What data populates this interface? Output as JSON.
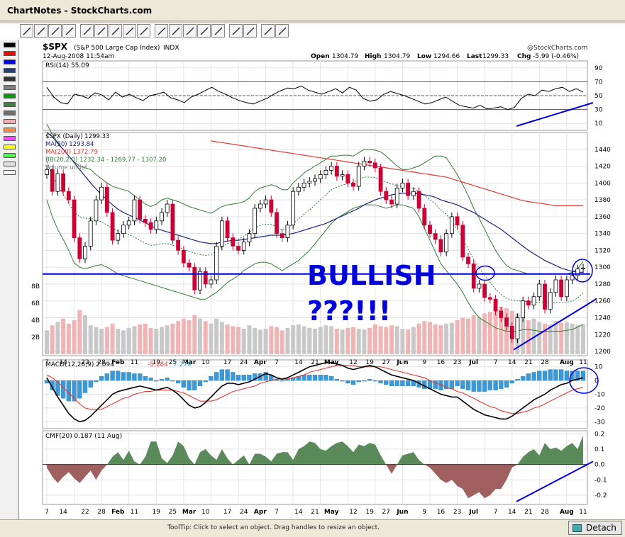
{
  "window": {
    "title": "ChartNotes - StockCharts.com"
  },
  "status": {
    "tooltip": "ToolTip: Click to select an object. Drag handles to resize an object.",
    "detach": "Detach"
  },
  "toolbar": {
    "tools": [
      "select-pointer",
      "line",
      "horizontal-line",
      "vertical-line",
      "rectangle",
      "ellipse",
      "text",
      "callout",
      "arrow",
      "fib-lines",
      "vertical-lines",
      "parallel-lines",
      "trend-channel",
      "segment",
      "shift-left",
      "shift-right",
      "undo",
      "properties"
    ]
  },
  "palette": {
    "colors": [
      "#000000",
      "#ff0000",
      "#0000ff",
      "#1f3f7f",
      "#333333",
      "#7f7f7f",
      "#009f00",
      "#3f7f3f",
      "#6f6f6f",
      "#ffaaaa",
      "#ff8844",
      "#ff44ff",
      "#ffff00",
      "#44ff44",
      "#dddddd",
      "#ffffff"
    ]
  },
  "colors": {
    "price_axis_hline": "#0000cc",
    "annotation": "#0000dd",
    "ma50": "#1a237e",
    "ma200": "#e53935",
    "bb": "#2e7d32",
    "up_candle": "#000000",
    "down_candle": "#cc0033",
    "vol_up": "#c8c8c8",
    "vol_down": "#f0b4b4",
    "macd_hist": "#3a9ad9",
    "cmf_pos": "#5a8a5a",
    "cmf_neg": "#a06060"
  },
  "header": {
    "symbol": "$SPX",
    "name": "(S&P 500 Large Cap Index)",
    "exchange": "INDX",
    "date": "12-Aug-2008 11:54am",
    "brand": "@StockCharts.com",
    "quote": {
      "open_label": "Open",
      "open": "1304.79",
      "high_label": "High",
      "high": "1304.79",
      "low_label": "Low",
      "low": "1294.66",
      "last_label": "Last",
      "last": "1299.33",
      "chg_label": "Chg",
      "chg": "-5.99 (-0.46%)"
    }
  },
  "annotations": {
    "bullish": "BULLISH",
    "question": "???!!!"
  },
  "chart_data": [
    {
      "type": "line",
      "title": "RSI(14) 55.09",
      "legend": [
        {
          "name": "RSI(14) 55.09",
          "color": "#000000"
        }
      ],
      "ylim": [
        0,
        100
      ],
      "y_ticks": [
        90,
        70,
        50,
        30,
        10
      ],
      "reference_lines": [
        70,
        50,
        30
      ],
      "series": [
        {
          "name": "RSI(14)",
          "values": [
            62,
            48,
            40,
            38,
            52,
            50,
            46,
            54,
            51,
            44,
            55,
            48,
            52,
            47,
            43,
            50,
            52,
            55,
            47,
            44,
            40,
            48,
            52,
            57,
            62,
            56,
            52,
            47,
            43,
            40,
            38,
            42,
            46,
            52,
            57,
            61,
            60,
            64,
            58,
            55,
            52,
            56,
            60,
            54,
            62,
            58,
            46,
            42,
            44,
            52,
            56,
            53,
            50,
            46,
            42,
            38,
            40,
            44,
            48,
            42,
            36,
            34,
            32,
            36,
            31,
            32,
            34,
            30,
            33,
            46,
            52,
            50,
            58,
            56,
            60,
            62,
            56,
            60,
            55
          ]
        }
      ]
    },
    {
      "type": "line",
      "title": "$SPX (Daily) 1299.33",
      "legend": [
        {
          "name": "$SPX (Daily) 1299.33",
          "color": "#000000"
        },
        {
          "name": "MA(50) 1293.84",
          "color": "#1a237e"
        },
        {
          "name": "MA(200) 1372.79",
          "color": "#e53935"
        },
        {
          "name": "BB(20,2.0) 1232.34 - 1269.77 - 1307.20",
          "color": "#2e7d32"
        },
        {
          "name": "Volume undef",
          "color": "#7f7f7f"
        }
      ],
      "ylim": [
        1195,
        1460
      ],
      "y_ticks": [
        1440,
        1420,
        1400,
        1380,
        1360,
        1340,
        1320,
        1300,
        1280,
        1260,
        1240,
        1220,
        1200
      ],
      "volume_ticks": [
        "8B",
        "6B",
        "4B",
        "2B"
      ],
      "x_ticks": [
        "7",
        "14",
        "22",
        "28",
        "Feb",
        "11",
        "19",
        "25",
        "Mar",
        "10",
        "17",
        "24",
        "Apr",
        "7",
        "14",
        "21",
        "May",
        "12",
        "19",
        "27",
        "Jun",
        "9",
        "16",
        "23",
        "Jul",
        "7",
        "14",
        "21",
        "28",
        "Aug",
        "11"
      ],
      "x_month_labels": [
        "Feb",
        "Mar",
        "Apr",
        "May",
        "Jun",
        "Jul",
        "Aug"
      ],
      "hline": 1292,
      "close": [
        1416,
        1390,
        1411,
        1390,
        1380,
        1335,
        1310,
        1325,
        1355,
        1380,
        1395,
        1365,
        1332,
        1340,
        1350,
        1355,
        1380,
        1357,
        1353,
        1345,
        1355,
        1365,
        1375,
        1332,
        1320,
        1305,
        1300,
        1273,
        1295,
        1280,
        1285,
        1325,
        1355,
        1335,
        1325,
        1320,
        1330,
        1340,
        1370,
        1375,
        1380,
        1365,
        1340,
        1335,
        1350,
        1390,
        1395,
        1400,
        1402,
        1405,
        1410,
        1415,
        1420,
        1408,
        1410,
        1400,
        1396,
        1420,
        1426,
        1424,
        1418,
        1390,
        1380,
        1375,
        1394,
        1400,
        1385,
        1390,
        1370,
        1350,
        1340,
        1333,
        1318,
        1340,
        1360,
        1350,
        1312,
        1304,
        1275,
        1280,
        1264,
        1262,
        1248,
        1240,
        1230,
        1215,
        1240,
        1260,
        1255,
        1265,
        1280,
        1250,
        1270,
        1285,
        1265,
        1285,
        1290,
        1298,
        1299
      ],
      "volume_b": [
        2.8,
        3.4,
        3.8,
        4.2,
        3.6,
        4.0,
        5.2,
        4.6,
        3.4,
        3.2,
        3.0,
        3.2,
        3.6,
        3.0,
        2.8,
        3.1,
        3.3,
        3.5,
        3.6,
        3.1,
        3.0,
        3.2,
        3.4,
        3.6,
        3.9,
        4.2,
        4.0,
        4.6,
        4.2,
        3.9,
        3.6,
        4.2,
        3.8,
        3.5,
        3.3,
        3.2,
        3.0,
        3.4,
        3.1,
        2.9,
        3.0,
        3.3,
        3.2,
        2.8,
        3.1,
        3.4,
        3.5,
        3.3,
        3.1,
        3.0,
        3.2,
        3.4,
        3.3,
        3.0,
        2.9,
        3.1,
        3.2,
        3.0,
        2.9,
        3.1,
        3.5,
        3.3,
        3.2,
        3.4,
        3.3,
        3.0,
        2.9,
        3.2,
        3.6,
        3.9,
        3.8,
        3.5,
        3.4,
        3.6,
        3.7,
        4.0,
        4.3,
        4.2,
        4.6,
        4.4,
        4.8,
        5.0,
        5.2,
        5.6,
        5.4,
        5.1,
        4.8,
        4.4,
        4.0,
        4.2,
        3.8,
        3.6,
        3.5,
        3.9,
        3.7,
        3.8,
        3.6,
        3.4,
        3.5
      ],
      "ma50": [
        1460,
        1455,
        1447,
        1440,
        1432,
        1424,
        1416,
        1408,
        1400,
        1393,
        1386,
        1380,
        1374,
        1369,
        1365,
        1362,
        1359,
        1356,
        1353,
        1349,
        1346,
        1344,
        1342,
        1340,
        1338,
        1336,
        1334,
        1332,
        1330,
        1329,
        1328,
        1328,
        1330,
        1331,
        1332,
        1332,
        1333,
        1334,
        1335,
        1336,
        1337,
        1338,
        1338,
        1338,
        1339,
        1340,
        1342,
        1344,
        1346,
        1348,
        1350,
        1352,
        1355,
        1358,
        1361,
        1364,
        1367,
        1370,
        1374,
        1377,
        1380,
        1382,
        1384,
        1386,
        1387,
        1388,
        1388,
        1388,
        1387,
        1386,
        1385,
        1383,
        1380,
        1378,
        1376,
        1374,
        1371,
        1368,
        1365,
        1361,
        1357,
        1353,
        1349,
        1345,
        1340,
        1335,
        1330,
        1325,
        1320,
        1316,
        1312,
        1308,
        1305,
        1302,
        1299,
        1297,
        1295,
        1294,
        1294
      ],
      "ma200": [
        null,
        null,
        null,
        null,
        null,
        null,
        null,
        null,
        null,
        null,
        null,
        null,
        null,
        null,
        null,
        null,
        null,
        null,
        null,
        null,
        null,
        null,
        null,
        null,
        null,
        null,
        null,
        null,
        null,
        null,
        1450,
        1449,
        1448,
        1447,
        1446,
        1445,
        1444,
        1443,
        1442,
        1441,
        1440,
        1439,
        1438,
        1437,
        1436,
        1435,
        1434,
        1433,
        1432,
        1431,
        1430,
        1429,
        1428,
        1427,
        1426,
        1425,
        1424,
        1423,
        1422,
        1421,
        1420,
        1419,
        1418,
        1417,
        1416,
        1415,
        1414,
        1413,
        1412,
        1411,
        1410,
        1409,
        1408,
        1407,
        1405,
        1403,
        1401,
        1399,
        1397,
        1395,
        1393,
        1391,
        1389,
        1387,
        1385,
        1383,
        1381,
        1379,
        1378,
        1377,
        1376,
        1375,
        1374,
        1373,
        1373,
        1373,
        1373,
        1373,
        1373
      ],
      "bb_upper": [
        1470,
        1458,
        1448,
        1440,
        1432,
        1425,
        1420,
        1418,
        1416,
        1410,
        1405,
        1400,
        1396,
        1394,
        1392,
        1390,
        1385,
        1380,
        1375,
        1372,
        1375,
        1380,
        1382,
        1380,
        1378,
        1375,
        1372,
        1370,
        1368,
        1366,
        1364,
        1368,
        1372,
        1374,
        1375,
        1376,
        1378,
        1382,
        1390,
        1394,
        1396,
        1398,
        1396,
        1392,
        1392,
        1400,
        1406,
        1412,
        1416,
        1420,
        1424,
        1428,
        1432,
        1432,
        1433,
        1433,
        1432,
        1436,
        1440,
        1440,
        1439,
        1437,
        1432,
        1426,
        1420,
        1416,
        1416,
        1418,
        1420,
        1424,
        1428,
        1432,
        1432,
        1430,
        1420,
        1410,
        1398,
        1385,
        1370,
        1358,
        1345,
        1332,
        1320,
        1310,
        1302,
        1298,
        1296,
        1294,
        1292,
        1292,
        1292,
        1292,
        1292,
        1292,
        1292,
        1292,
        1294,
        1298,
        1307
      ],
      "bb_lower": [
        1380,
        1360,
        1345,
        1333,
        1320,
        1305,
        1300,
        1298,
        1300,
        1302,
        1303,
        1300,
        1296,
        1292,
        1290,
        1288,
        1286,
        1284,
        1282,
        1280,
        1278,
        1276,
        1274,
        1272,
        1270,
        1268,
        1266,
        1264,
        1262,
        1262,
        1266,
        1270,
        1276,
        1282,
        1286,
        1290,
        1296,
        1300,
        1304,
        1306,
        1306,
        1304,
        1300,
        1296,
        1300,
        1304,
        1308,
        1314,
        1320,
        1328,
        1336,
        1344,
        1352,
        1358,
        1362,
        1366,
        1370,
        1372,
        1374,
        1374,
        1374,
        1372,
        1370,
        1372,
        1374,
        1374,
        1372,
        1370,
        1360,
        1346,
        1332,
        1318,
        1304,
        1296,
        1288,
        1280,
        1270,
        1258,
        1248,
        1240,
        1236,
        1232,
        1228,
        1226,
        1224,
        1224,
        1224,
        1226,
        1226,
        1225,
        1224,
        1224,
        1224,
        1224,
        1224,
        1225,
        1226,
        1229,
        1232
      ]
    },
    {
      "type": "line",
      "title": "MACD(12,26,9) 2.094, -5.184, 7.279",
      "legend": [
        {
          "name": "MACD(12,26,9) 2.094",
          "color": "#000000"
        },
        {
          "name": "-5.184",
          "color": "#e53935"
        },
        {
          "name": "7.279",
          "color": "#3a9ad9"
        }
      ],
      "ylim": [
        -35,
        15
      ],
      "y_ticks": [
        10,
        0,
        -10,
        -20,
        -30
      ],
      "series": [
        {
          "name": "MACD",
          "values": [
            2,
            -5,
            -12,
            -18,
            -24,
            -28,
            -30,
            -29,
            -26,
            -22,
            -18,
            -14,
            -10,
            -8,
            -7,
            -6,
            -5,
            -4,
            -5,
            -6,
            -7,
            -6,
            -5,
            -7,
            -10,
            -14,
            -18,
            -20,
            -19,
            -16,
            -12,
            -8,
            -4,
            -2,
            -2,
            -3,
            -2,
            -1,
            1,
            3,
            5,
            4,
            2,
            1,
            2,
            4,
            6,
            8,
            10,
            11,
            12,
            13,
            13,
            12,
            11,
            9,
            8,
            9,
            10,
            11,
            10,
            8,
            6,
            4,
            3,
            2,
            1,
            0,
            -2,
            -4,
            -6,
            -8,
            -10,
            -11,
            -12,
            -12,
            -15,
            -18,
            -21,
            -23,
            -25,
            -26,
            -27,
            -28,
            -28,
            -26,
            -23,
            -20,
            -17,
            -14,
            -12,
            -10,
            -7,
            -5,
            -3,
            -2,
            0,
            1,
            2
          ]
        },
        {
          "name": "Signal",
          "values": [
            4,
            2,
            -1,
            -5,
            -9,
            -13,
            -17,
            -20,
            -21,
            -21,
            -21,
            -19,
            -17,
            -15,
            -13,
            -12,
            -10,
            -9,
            -8,
            -8,
            -7,
            -7,
            -7,
            -7,
            -8,
            -9,
            -11,
            -13,
            -15,
            -15,
            -15,
            -14,
            -12,
            -10,
            -8,
            -7,
            -6,
            -5,
            -4,
            -2,
            -1,
            0,
            1,
            1,
            1,
            2,
            3,
            4,
            6,
            7,
            8,
            9,
            10,
            11,
            11,
            11,
            11,
            10,
            10,
            10,
            10,
            10,
            9,
            8,
            7,
            6,
            5,
            4,
            3,
            2,
            0,
            -2,
            -3,
            -5,
            -6,
            -8,
            -9,
            -11,
            -13,
            -15,
            -17,
            -19,
            -20,
            -22,
            -23,
            -24,
            -24,
            -23,
            -22,
            -20,
            -19,
            -17,
            -15,
            -13,
            -11,
            -9,
            -7,
            -6,
            -5
          ]
        }
      ]
    },
    {
      "type": "area",
      "title": "CMF(20) 0.187 (11 Aug)",
      "legend": [
        {
          "name": "CMF(20) 0.187 (11 Aug)",
          "color": "#000000"
        }
      ],
      "ylim": [
        -0.26,
        0.22
      ],
      "y_ticks": [
        0.2,
        0.1,
        0.0,
        -0.1,
        -0.2
      ],
      "series": [
        {
          "name": "CMF(20)",
          "values": [
            -0.02,
            -0.08,
            -0.12,
            -0.08,
            -0.05,
            -0.09,
            -0.12,
            -0.08,
            -0.04,
            -0.1,
            -0.04,
            0.0,
            0.05,
            0.08,
            0.03,
            0.09,
            0.02,
            0.0,
            0.05,
            0.15,
            0.15,
            0.04,
            0.01,
            0.06,
            0.15,
            0.12,
            0.04,
            0.0,
            0.08,
            0.1,
            0.06,
            0.03,
            0.1,
            0.04,
            0.0,
            0.03,
            0.06,
            0.0,
            0.07,
            0.07,
            0.05,
            0.02,
            0.07,
            0.08,
            0.08,
            0.03,
            0.1,
            0.12,
            0.15,
            0.14,
            0.1,
            0.09,
            0.12,
            0.14,
            0.15,
            0.12,
            0.08,
            0.13,
            0.12,
            0.14,
            0.13,
            0.06,
            0.0,
            -0.06,
            0.0,
            0.06,
            0.07,
            0.08,
            0.03,
            0.0,
            -0.02,
            -0.06,
            -0.1,
            -0.12,
            -0.1,
            -0.14,
            -0.16,
            -0.22,
            -0.2,
            -0.18,
            -0.22,
            -0.2,
            -0.16,
            -0.16,
            -0.1,
            -0.02,
            0.0,
            0.05,
            0.08,
            0.1,
            0.06,
            0.14,
            0.1,
            0.11,
            0.09,
            0.12,
            0.14,
            0.1,
            0.19
          ]
        }
      ]
    }
  ]
}
